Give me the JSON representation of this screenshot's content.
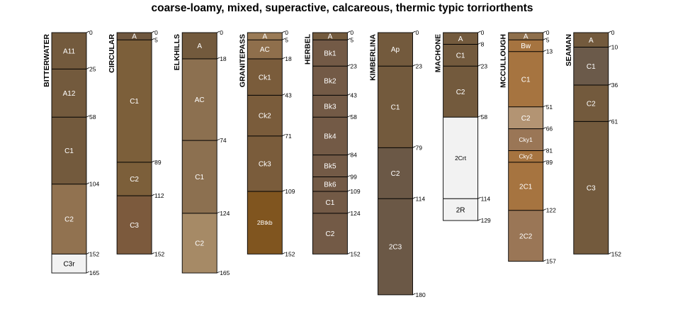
{
  "title": "coarse-loamy, mixed, superactive, calcareous, thermic typic torriorthents",
  "profiles": [
    {
      "name": "BITTERWATER",
      "horizons": [
        {
          "name": "A11",
          "top": 0,
          "bottom": 25,
          "color": "#735a3d"
        },
        {
          "name": "A12",
          "top": 25,
          "bottom": 58,
          "color": "#735a3d"
        },
        {
          "name": "C1",
          "top": 58,
          "bottom": 104,
          "color": "#735a3d"
        },
        {
          "name": "C2",
          "top": 104,
          "bottom": 152,
          "color": "#917250"
        },
        {
          "name": "C3r",
          "top": 152,
          "bottom": 165,
          "color": "#f2f2f2"
        }
      ],
      "depth_labels": [
        "0",
        "25",
        "58",
        "104",
        "152",
        "165"
      ]
    },
    {
      "name": "CIRCULAR",
      "horizons": [
        {
          "name": "A",
          "top": 0,
          "bottom": 5,
          "color": "#6f573e"
        },
        {
          "name": "C1",
          "top": 5,
          "bottom": 89,
          "color": "#7c5f3a"
        },
        {
          "name": "C2",
          "top": 89,
          "bottom": 112,
          "color": "#7c5f3a"
        },
        {
          "name": "C3",
          "top": 112,
          "bottom": 152,
          "color": "#7c5a3d"
        }
      ],
      "depth_labels": [
        "0",
        "5",
        "89",
        "112",
        "152"
      ]
    },
    {
      "name": "ELKHILLS",
      "horizons": [
        {
          "name": "A",
          "top": 0,
          "bottom": 18,
          "color": "#735a3d"
        },
        {
          "name": "AC",
          "top": 18,
          "bottom": 74,
          "color": "#8c7050"
        },
        {
          "name": "C1",
          "top": 74,
          "bottom": 124,
          "color": "#8c7050"
        },
        {
          "name": "C2",
          "top": 124,
          "bottom": 165,
          "color": "#a68a66"
        }
      ],
      "depth_labels": [
        "0",
        "18",
        "74",
        "124",
        "165"
      ]
    },
    {
      "name": "GRANITEPASS",
      "horizons": [
        {
          "name": "A",
          "top": 0,
          "bottom": 5,
          "color": "#9a7b56"
        },
        {
          "name": "AC",
          "top": 5,
          "bottom": 18,
          "color": "#8f6f4c"
        },
        {
          "name": "Ck1",
          "top": 18,
          "bottom": 43,
          "color": "#7a5c3b"
        },
        {
          "name": "Ck2",
          "top": 43,
          "bottom": 71,
          "color": "#7a5c3b"
        },
        {
          "name": "Ck3",
          "top": 71,
          "bottom": 109,
          "color": "#7a5c3b"
        },
        {
          "name": "2Btkb",
          "top": 109,
          "bottom": 152,
          "color": "#80551f"
        }
      ],
      "depth_labels": [
        "0",
        "5",
        "18",
        "43",
        "71",
        "109",
        "152"
      ]
    },
    {
      "name": "HERBEL",
      "horizons": [
        {
          "name": "A",
          "top": 0,
          "bottom": 5,
          "color": "#735a3d"
        },
        {
          "name": "Bk1",
          "top": 5,
          "bottom": 23,
          "color": "#735a46"
        },
        {
          "name": "Bk2",
          "top": 23,
          "bottom": 43,
          "color": "#735a46"
        },
        {
          "name": "Bk3",
          "top": 43,
          "bottom": 58,
          "color": "#735a46"
        },
        {
          "name": "Bk4",
          "top": 58,
          "bottom": 84,
          "color": "#735a46"
        },
        {
          "name": "Bk5",
          "top": 84,
          "bottom": 99,
          "color": "#735a46"
        },
        {
          "name": "Bk6",
          "top": 99,
          "bottom": 109,
          "color": "#735a46"
        },
        {
          "name": "C1",
          "top": 109,
          "bottom": 124,
          "color": "#735a46"
        },
        {
          "name": "C2",
          "top": 124,
          "bottom": 152,
          "color": "#735a46"
        }
      ],
      "depth_labels": [
        "0",
        "5",
        "23",
        "43",
        "58",
        "84",
        "99",
        "109",
        "124",
        "152"
      ]
    },
    {
      "name": "KIMBERLINA",
      "horizons": [
        {
          "name": "Ap",
          "top": 0,
          "bottom": 23,
          "color": "#735a3d"
        },
        {
          "name": "C1",
          "top": 23,
          "bottom": 79,
          "color": "#735a3d"
        },
        {
          "name": "C2",
          "top": 79,
          "bottom": 114,
          "color": "#6b5846"
        },
        {
          "name": "2C3",
          "top": 114,
          "bottom": 180,
          "color": "#6b5846"
        }
      ],
      "depth_labels": [
        "0",
        "23",
        "79",
        "114",
        "180"
      ]
    },
    {
      "name": "MACHONE",
      "horizons": [
        {
          "name": "A",
          "top": 0,
          "bottom": 8,
          "color": "#735a3d"
        },
        {
          "name": "C1",
          "top": 8,
          "bottom": 23,
          "color": "#735a3d"
        },
        {
          "name": "C2",
          "top": 23,
          "bottom": 58,
          "color": "#735a3d"
        },
        {
          "name": "2Crt",
          "top": 58,
          "bottom": 114,
          "color": "#f2f2f2"
        },
        {
          "name": "2R",
          "top": 114,
          "bottom": 129,
          "color": "#f2f2f2"
        }
      ],
      "depth_labels": [
        "0",
        "8",
        "23",
        "58",
        "114",
        "129"
      ]
    },
    {
      "name": "MCCULLOUGH",
      "horizons": [
        {
          "name": "A",
          "top": 0,
          "bottom": 5,
          "color": "#8e6f4c"
        },
        {
          "name": "Bw",
          "top": 5,
          "bottom": 13,
          "color": "#a67440"
        },
        {
          "name": "C1",
          "top": 13,
          "bottom": 51,
          "color": "#a67440"
        },
        {
          "name": "C2",
          "top": 51,
          "bottom": 66,
          "color": "#b39473"
        },
        {
          "name": "Cky1",
          "top": 66,
          "bottom": 81,
          "color": "#9a7656"
        },
        {
          "name": "Cky2",
          "top": 81,
          "bottom": 89,
          "color": "#a67440"
        },
        {
          "name": "2C1",
          "top": 89,
          "bottom": 122,
          "color": "#a67440"
        },
        {
          "name": "2C2",
          "top": 122,
          "bottom": 157,
          "color": "#9a7656"
        }
      ],
      "depth_labels": [
        "0",
        "5",
        "13",
        "51",
        "66",
        "81",
        "89",
        "122",
        "157"
      ]
    },
    {
      "name": "SEAMAN",
      "horizons": [
        {
          "name": "A",
          "top": 0,
          "bottom": 10,
          "color": "#735a3d"
        },
        {
          "name": "C1",
          "top": 10,
          "bottom": 36,
          "color": "#6b5a4a"
        },
        {
          "name": "C2",
          "top": 36,
          "bottom": 61,
          "color": "#735a3d"
        },
        {
          "name": "C3",
          "top": 61,
          "bottom": 152,
          "color": "#735a3d"
        }
      ],
      "depth_labels": [
        "0",
        "10",
        "36",
        "61",
        "152"
      ]
    }
  ]
}
